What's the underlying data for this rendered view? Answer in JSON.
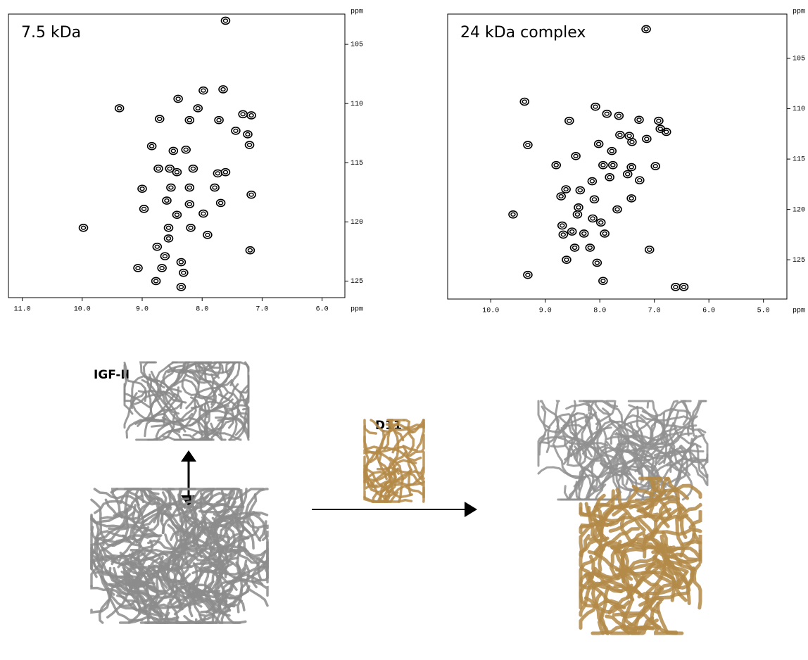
{
  "chart_data": [
    {
      "type": "scatter",
      "title": "7.5 kDa",
      "x_label": "ppm",
      "y_label": "ppm",
      "xlim": [
        11.23,
        5.62
      ],
      "ylim": [
        126.4,
        102.44
      ],
      "xticks": [
        {
          "value": 11,
          "label": "11.0"
        },
        {
          "value": 10,
          "label": "10.0"
        },
        {
          "value": 9,
          "label": "9.0"
        },
        {
          "value": 8,
          "label": "8.0"
        },
        {
          "value": 7,
          "label": "7.0"
        },
        {
          "value": 6,
          "label": "6.0"
        }
      ],
      "yticks": [
        105,
        110,
        115,
        120,
        125
      ],
      "color": "#000000",
      "x": [
        7.61,
        9.38,
        7.98,
        8.4,
        7.65,
        8.07,
        7.32,
        7.18,
        8.71,
        8.21,
        7.72,
        7.44,
        7.24,
        7.21,
        8.84,
        8.48,
        8.27,
        8.54,
        8.73,
        8.42,
        8.15,
        7.74,
        7.61,
        9.0,
        8.52,
        8.21,
        7.79,
        7.18,
        8.59,
        8.21,
        7.69,
        8.97,
        8.42,
        7.98,
        9.98,
        8.56,
        8.19,
        8.56,
        7.91,
        8.75,
        8.62,
        7.2,
        8.35,
        9.07,
        8.67,
        8.31,
        8.77,
        8.35
      ],
      "values": [
        103.0,
        110.4,
        108.9,
        109.6,
        108.8,
        110.4,
        110.9,
        111.0,
        111.3,
        111.4,
        111.4,
        112.3,
        112.6,
        113.5,
        113.6,
        114.0,
        113.9,
        115.5,
        115.5,
        115.8,
        115.5,
        115.9,
        115.8,
        117.2,
        117.1,
        117.1,
        117.1,
        117.7,
        118.2,
        118.5,
        118.4,
        118.9,
        119.4,
        119.3,
        120.5,
        120.5,
        120.5,
        121.4,
        121.1,
        122.1,
        122.9,
        122.4,
        123.4,
        123.9,
        123.9,
        124.3,
        125.0,
        125.5
      ]
    },
    {
      "type": "scatter",
      "title": "24 kDa complex",
      "x_label": "ppm",
      "y_label": "ppm",
      "xlim": [
        10.79,
        4.57
      ],
      "ylim": [
        128.9,
        100.6
      ],
      "xticks": [
        {
          "value": 10,
          "label": "10.0"
        },
        {
          "value": 9,
          "label": "9.0"
        },
        {
          "value": 8,
          "label": "8.0"
        },
        {
          "value": 7,
          "label": "7.0"
        },
        {
          "value": 6,
          "label": "6.0"
        },
        {
          "value": 5,
          "label": "5.0"
        }
      ],
      "yticks": [
        105,
        110,
        115,
        120,
        125
      ],
      "color": "#000000",
      "x": [
        7.15,
        9.38,
        8.08,
        8.56,
        7.87,
        7.65,
        7.28,
        6.92,
        6.89,
        6.78,
        7.63,
        7.46,
        7.41,
        7.14,
        9.32,
        8.02,
        7.78,
        8.44,
        8.8,
        7.94,
        7.76,
        7.42,
        6.98,
        7.82,
        7.49,
        8.14,
        8.36,
        7.27,
        8.62,
        8.71,
        8.1,
        7.42,
        8.39,
        7.68,
        9.59,
        8.41,
        8.13,
        7.98,
        8.69,
        8.51,
        8.67,
        8.29,
        7.91,
        8.46,
        8.18,
        7.09,
        8.61,
        8.05,
        9.32,
        7.94,
        6.61,
        6.46
      ],
      "values": [
        102.1,
        109.3,
        109.8,
        111.2,
        110.5,
        110.7,
        111.1,
        111.2,
        112.0,
        112.3,
        112.6,
        112.7,
        113.3,
        113.0,
        113.6,
        113.5,
        114.2,
        114.7,
        115.6,
        115.6,
        115.6,
        115.8,
        115.7,
        116.8,
        116.5,
        117.2,
        118.1,
        117.1,
        118.0,
        118.7,
        119.0,
        118.9,
        119.8,
        120.0,
        120.5,
        120.5,
        120.9,
        121.3,
        121.6,
        122.2,
        122.5,
        122.4,
        122.4,
        123.8,
        123.8,
        124.0,
        125.0,
        125.3,
        126.5,
        127.1,
        127.7,
        127.7
      ]
    }
  ],
  "diagram": {
    "labels": [
      "IGF-II",
      "D11"
    ]
  }
}
